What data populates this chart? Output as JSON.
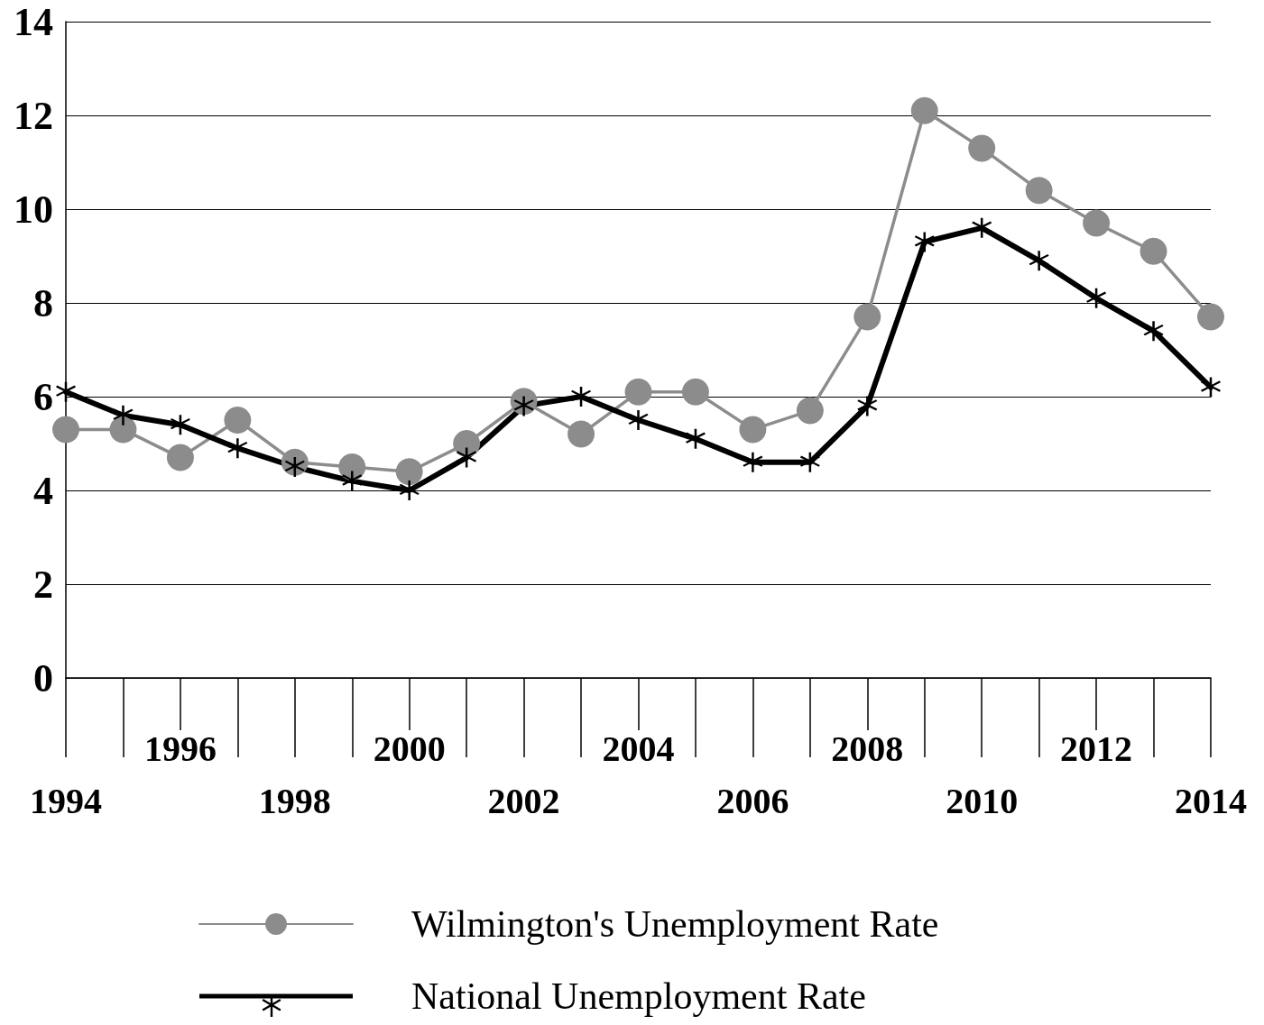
{
  "chart_data": {
    "type": "line",
    "categories": [
      "1994",
      null,
      "1996",
      null,
      "1998",
      null,
      "2000",
      null,
      "2002",
      null,
      "2004",
      null,
      "2006",
      null,
      "2008",
      null,
      "2010",
      null,
      "2012",
      null,
      "2014"
    ],
    "series": [
      {
        "name": "Wilmington's Unemployment Rate",
        "color": "#8c8c8c",
        "marker": "circle",
        "values": [
          5.3,
          5.3,
          4.7,
          5.5,
          4.6,
          4.5,
          4.4,
          5.0,
          5.9,
          5.2,
          6.1,
          6.1,
          5.3,
          5.7,
          7.7,
          12.1,
          11.3,
          10.4,
          9.7,
          9.1,
          7.7
        ]
      },
      {
        "name": "National Unemployment Rate",
        "color": "#000000",
        "marker": "star",
        "values": [
          6.1,
          5.6,
          5.4,
          4.9,
          4.5,
          4.2,
          4.0,
          4.7,
          5.8,
          6.0,
          5.5,
          5.1,
          4.6,
          4.6,
          5.8,
          9.3,
          9.6,
          8.9,
          8.1,
          7.4,
          6.2
        ]
      }
    ],
    "ylim": [
      0,
      14
    ],
    "yticks": [
      0,
      2,
      4,
      6,
      8,
      10,
      12,
      14
    ],
    "grid": "y",
    "legend": "bottom",
    "line_style": "solid"
  }
}
